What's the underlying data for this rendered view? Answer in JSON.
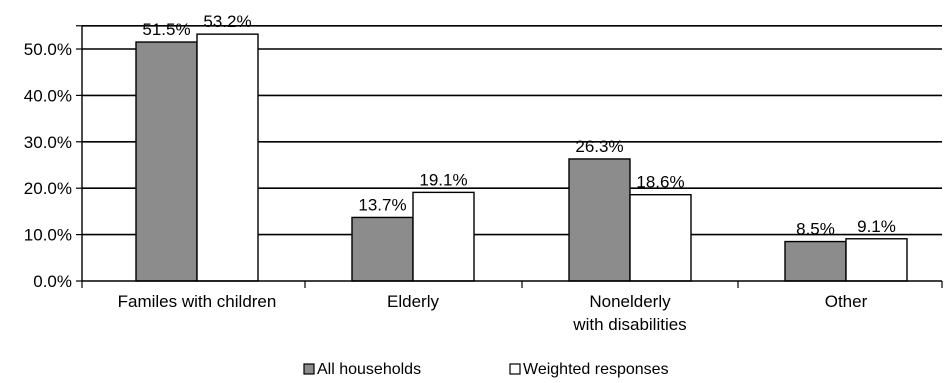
{
  "chart_data": {
    "type": "bar",
    "categories": [
      [
        "Familes with children"
      ],
      [
        "Elderly"
      ],
      [
        "Nonelderly",
        "with disabilities"
      ],
      [
        "Other"
      ]
    ],
    "series": [
      {
        "name": "All households",
        "values": [
          51.5,
          13.7,
          26.3,
          8.5
        ],
        "color": "#8c8c8c",
        "labels": [
          "51.5%",
          "13.7%",
          "26.3%",
          "8.5%"
        ]
      },
      {
        "name": "Weighted responses",
        "values": [
          53.2,
          19.1,
          18.6,
          9.1
        ],
        "color": "#ffffff",
        "labels": [
          "53.2%",
          "19.1%",
          "18.6%",
          "9.1%"
        ]
      }
    ],
    "ylim": [
      0,
      50
    ],
    "yticks": [
      "0.0%",
      "10.0%",
      "20.0%",
      "30.0%",
      "40.0%",
      "50.0%"
    ],
    "ytick_values": [
      0,
      10,
      20,
      30,
      40,
      50
    ],
    "grid": true,
    "legend_position": "bottom"
  }
}
